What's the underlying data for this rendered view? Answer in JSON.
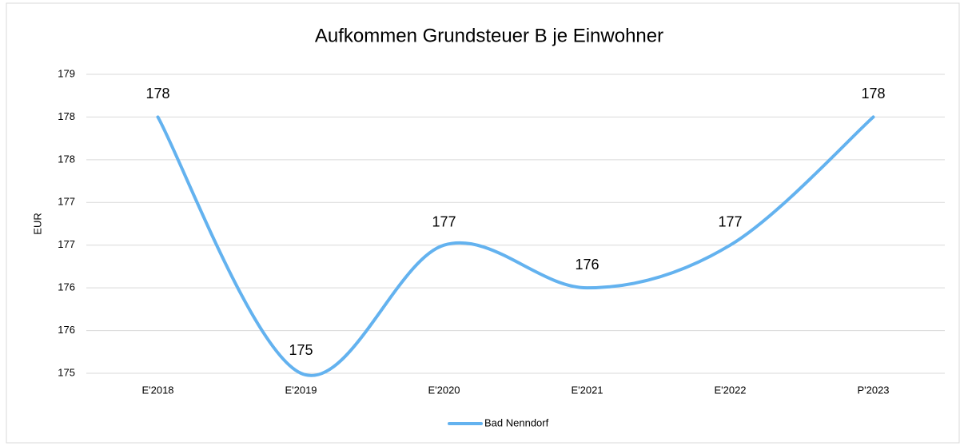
{
  "chart_data": {
    "type": "line",
    "title": "Aufkommen Grundsteuer B je Einwohner",
    "y_label": "EUR",
    "categories": [
      "E'2018",
      "E'2019",
      "E'2020",
      "E'2021",
      "E'2022",
      "P'2023"
    ],
    "series": [
      {
        "name": "Bad Nenndorf",
        "color": "#63b2ef",
        "values": [
          178,
          175,
          176.5,
          176,
          176.5,
          178
        ],
        "value_labels": [
          "178",
          "175",
          "177",
          "176",
          "177",
          "178"
        ]
      }
    ],
    "ylim": [
      175,
      178.5
    ],
    "yticks": [
      {
        "value": 175,
        "label": "175"
      },
      {
        "value": 175.5,
        "label": "176"
      },
      {
        "value": 176,
        "label": "176"
      },
      {
        "value": 176.5,
        "label": "177"
      },
      {
        "value": 177,
        "label": "177"
      },
      {
        "value": 177.5,
        "label": "178"
      },
      {
        "value": 178,
        "label": "178"
      },
      {
        "value": 178.5,
        "label": "179"
      }
    ],
    "grid": true,
    "smooth": true,
    "legend": "bottom"
  }
}
